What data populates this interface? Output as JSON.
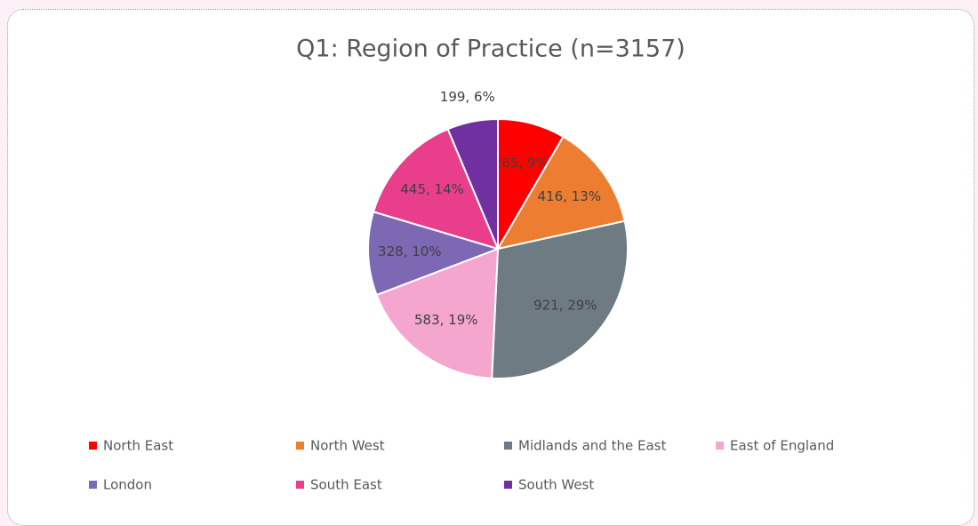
{
  "chart_data": {
    "type": "pie",
    "title": "Q1: Region of Practice (n=3157)",
    "categories": [
      "North East",
      "North West",
      "Midlands and the East",
      "East of England",
      "London",
      "South East",
      "South West"
    ],
    "values": [
      265,
      416,
      921,
      583,
      328,
      445,
      199
    ],
    "value_labels": [
      "265, 9%",
      "416, 13%",
      "921, 29%",
      "583, 19%",
      "328, 10%",
      "445, 14%",
      "199, 6%"
    ],
    "colors": [
      "#ff0000",
      "#ed7d31",
      "#6e7b82",
      "#f4a6cf",
      "#7d68b3",
      "#e83e8c",
      "#7030a0"
    ],
    "legend": "bottom"
  }
}
